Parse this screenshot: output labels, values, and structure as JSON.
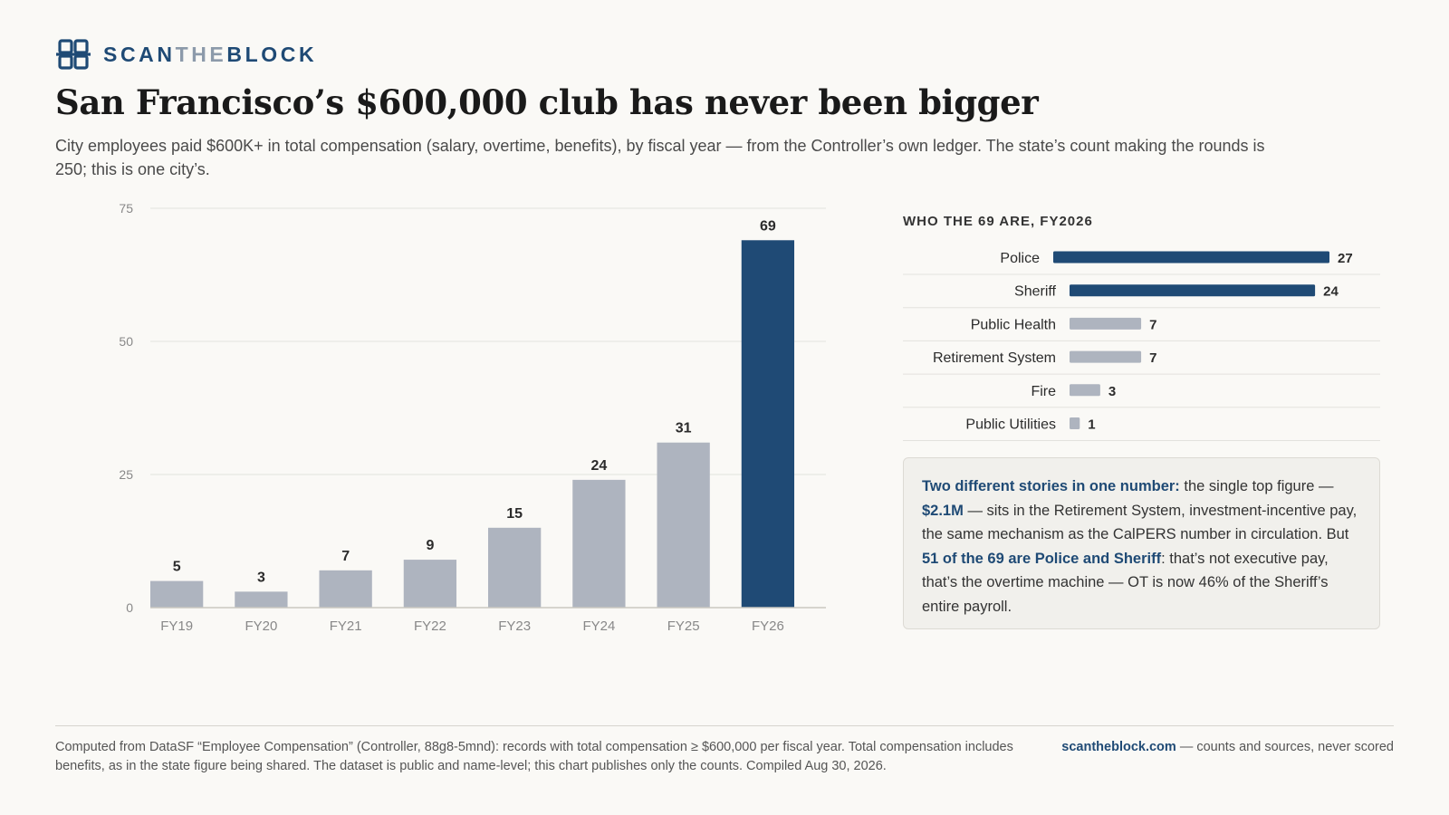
{
  "brand": {
    "part1": "SCAN",
    "part2": "THE",
    "part3": "BLOCK"
  },
  "title": "San Francisco’s $600,000 club has never been bigger",
  "subtitle": "City employees paid $600K+ in total compensation (salary, overtime, benefits), by fiscal year — from the Controller’s own ledger. The state’s count making the rounds is 250; this is one city’s.",
  "colors": {
    "accent": "#1f4a75",
    "muted": "#aeb4bf",
    "grid": "#e3e2de",
    "axis": "#c9c7c1"
  },
  "chart_data": [
    {
      "type": "bar",
      "categories": [
        "FY19",
        "FY20",
        "FY21",
        "FY22",
        "FY23",
        "FY24",
        "FY25",
        "FY26"
      ],
      "values": [
        5,
        3,
        7,
        9,
        15,
        24,
        31,
        69
      ],
      "highlight": [
        false,
        false,
        false,
        false,
        false,
        false,
        false,
        true
      ],
      "yticks": [
        0,
        25,
        50,
        75
      ],
      "ylim": [
        0,
        75
      ],
      "grid": true
    },
    {
      "type": "bar",
      "orientation": "horizontal",
      "title": "WHO THE 69 ARE, FY2026",
      "categories": [
        "Police",
        "Sheriff",
        "Public Health",
        "Retirement System",
        "Fire",
        "Public Utilities"
      ],
      "values": [
        27,
        24,
        7,
        7,
        3,
        1
      ],
      "highlight": [
        true,
        true,
        false,
        false,
        false,
        false
      ]
    }
  ],
  "callout": {
    "lead": "Two different stories in one number:",
    "t1": " the single top figure — ",
    "amount": "$2.1M",
    "t2": " — sits in the Retirement System, investment-incentive pay, the same mechanism as the CalPERS number in circulation. But ",
    "hl2": "51 of the 69 are Police and Sheriff",
    "t3": ": that’s not executive pay, that’s the overtime machine — OT is now 46% of the Sheriff’s entire payroll."
  },
  "footer": {
    "note": "Computed from DataSF “Employee Compensation” (Controller, 88g8-5mnd): records with total compensation ≥ $600,000 per fiscal year. Total compensation includes benefits, as in the state figure being shared. The dataset is public and name-level; this chart publishes only the counts. Compiled Aug 30, 2026.",
    "site": "scantheblock.com",
    "tagline": " — counts and sources, never scored"
  }
}
